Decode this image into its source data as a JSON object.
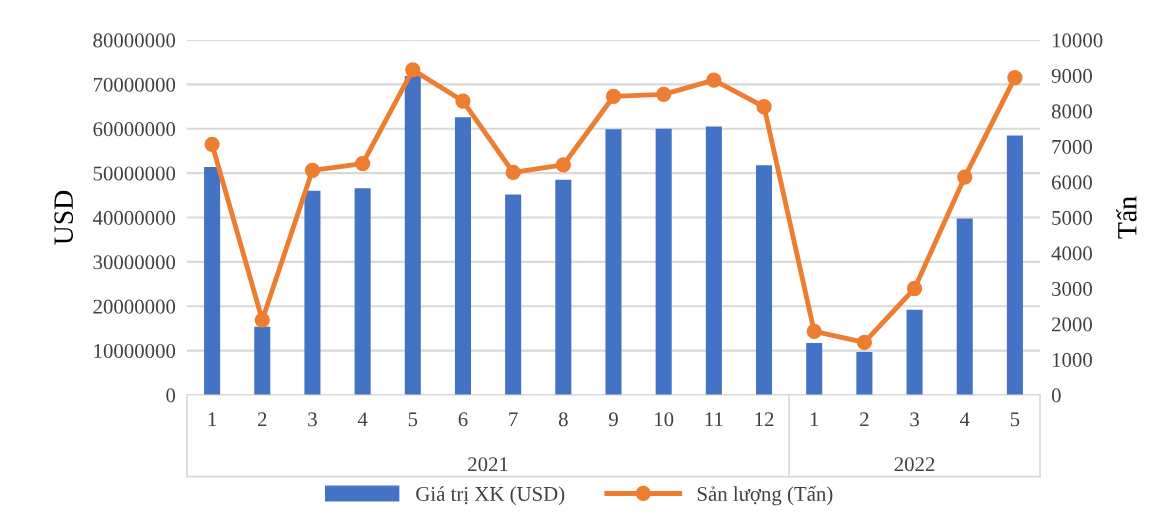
{
  "chart_data": {
    "type": "bar",
    "categories": [
      "1",
      "2",
      "3",
      "4",
      "5",
      "6",
      "7",
      "8",
      "9",
      "10",
      "11",
      "12",
      "1",
      "2",
      "3",
      "4",
      "5"
    ],
    "ylabel": "USD",
    "y2label": "Tấn",
    "ylim": [
      0,
      80000000
    ],
    "yticks": [
      0,
      10000000,
      20000000,
      30000000,
      40000000,
      50000000,
      60000000,
      70000000,
      80000000
    ],
    "y2lim": [
      0,
      10000
    ],
    "y2ticks": [
      0,
      1000,
      2000,
      3000,
      4000,
      5000,
      6000,
      7000,
      8000,
      9000,
      10000
    ],
    "series": [
      {
        "name": "Giá trị XK (USD)",
        "color": "#4472c4",
        "values": [
          51400000,
          15400000,
          46000000,
          46600000,
          71900000,
          62600000,
          45200000,
          48500000,
          59900000,
          60000000,
          60500000,
          51800000,
          11700000,
          9700000,
          19200000,
          39800000,
          58500000
        ]
      },
      {
        "name": "Sản lượng (Tấn)",
        "type": "line",
        "axis": "y2",
        "color": "#ed7d31",
        "marker": "circle",
        "values": [
          7060,
          2110,
          6330,
          6520,
          9160,
          8280,
          6270,
          6480,
          8410,
          8470,
          8870,
          8120,
          1790,
          1480,
          3000,
          6140,
          8940
        ]
      }
    ],
    "annotations": [
      "2021",
      "2022"
    ],
    "grid": "y",
    "legend": "bottom"
  }
}
